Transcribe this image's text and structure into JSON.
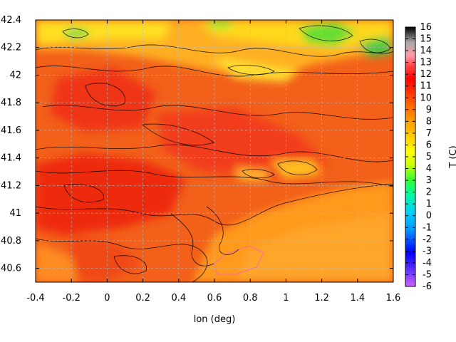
{
  "chart_data": {
    "type": "heatmap",
    "xlabel": "lon (deg)",
    "ylabel": "",
    "colorbar_label": "T (C)",
    "xlim": [
      -0.4,
      1.6
    ],
    "ylim": [
      40.5,
      42.4
    ],
    "x_ticks": [
      -0.4,
      -0.2,
      0,
      0.2,
      0.4,
      0.6,
      0.8,
      1,
      1.2,
      1.4,
      1.6
    ],
    "x_tick_labels": [
      "-0.4",
      "-0.2",
      "0",
      "0.2",
      "0.4",
      "0.6",
      "0.8",
      "1",
      "1.2",
      "1.4",
      "1.6"
    ],
    "y_ticks": [
      40.6,
      40.8,
      41,
      41.2,
      41.4,
      41.6,
      41.8,
      42,
      42.2,
      42.4
    ],
    "y_tick_labels": [
      "40.6",
      "40.8",
      "41",
      "41.2",
      "41.4",
      "41.6",
      "41.8",
      "42",
      "42.2",
      "42.4"
    ],
    "colorbar_range": [
      -6,
      16
    ],
    "colorbar_ticks": [
      16,
      15,
      14,
      13,
      12,
      11,
      10,
      9,
      8,
      7,
      6,
      5,
      4,
      3,
      2,
      1,
      0,
      -1,
      -2,
      -3,
      -4,
      -5,
      -6
    ],
    "colorbar_tick_labels": [
      "16",
      "15",
      "14",
      "13",
      "12",
      "11",
      "10",
      "9",
      "8",
      "7",
      "6",
      "5",
      "4",
      "3",
      "2",
      "1",
      "0",
      "-1",
      "-2",
      "-3",
      "-4",
      "-5",
      "-6"
    ],
    "grid": true,
    "contours": true,
    "palette": [
      "#cc66ff",
      "#6633ff",
      "#0000ff",
      "#0099ff",
      "#00ccff",
      "#00ff99",
      "#33ff33",
      "#ccff00",
      "#ffff00",
      "#ffcc00",
      "#ff9900",
      "#ff6600",
      "#ff3300",
      "#ff0000",
      "#ff4444",
      "#ff99aa",
      "#aaaaaa",
      "#000000"
    ]
  }
}
